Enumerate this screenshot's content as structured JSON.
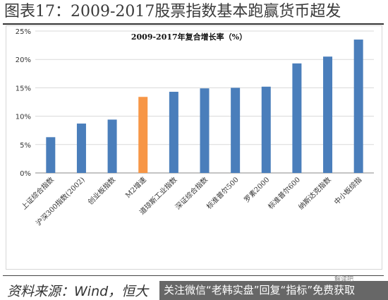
{
  "figure": {
    "title": "图表17：2009-2017股票指数基本跑赢货币超发",
    "source_label": "资料来源：",
    "source_text": "Wind，恒大",
    "watermark": "关注微信“老韩实盘”回复“指标”免费获取",
    "watermark_logo": "解读吧"
  },
  "colors": {
    "bar": "#4A7EBB",
    "bar_highlight": "#F79646",
    "grid": "#d9d9d9",
    "axis": "#888888",
    "text": "#333333"
  },
  "chart_data": {
    "type": "bar",
    "title": "2009-2017年复合增长率（%）",
    "categories": [
      "上证综合指数",
      "沪深300指数(2002)",
      "创业板指数",
      "M2增速",
      "道琼斯工业指数",
      "深证综合指数",
      "标准普尔500",
      "罗素2000",
      "标准普尔600",
      "纳斯达克指数",
      "中小板综指"
    ],
    "values": [
      6.3,
      8.7,
      9.4,
      13.4,
      14.3,
      14.9,
      15.0,
      15.2,
      19.3,
      20.5,
      23.5
    ],
    "highlight_index": 3,
    "ylim": [
      0,
      25
    ],
    "yticks": [
      "0%",
      "5%",
      "10%",
      "15%",
      "20%",
      "25%"
    ],
    "ytick_values": [
      0,
      5,
      10,
      15,
      20,
      25
    ],
    "xlabel": "",
    "ylabel": "",
    "grid": true
  }
}
